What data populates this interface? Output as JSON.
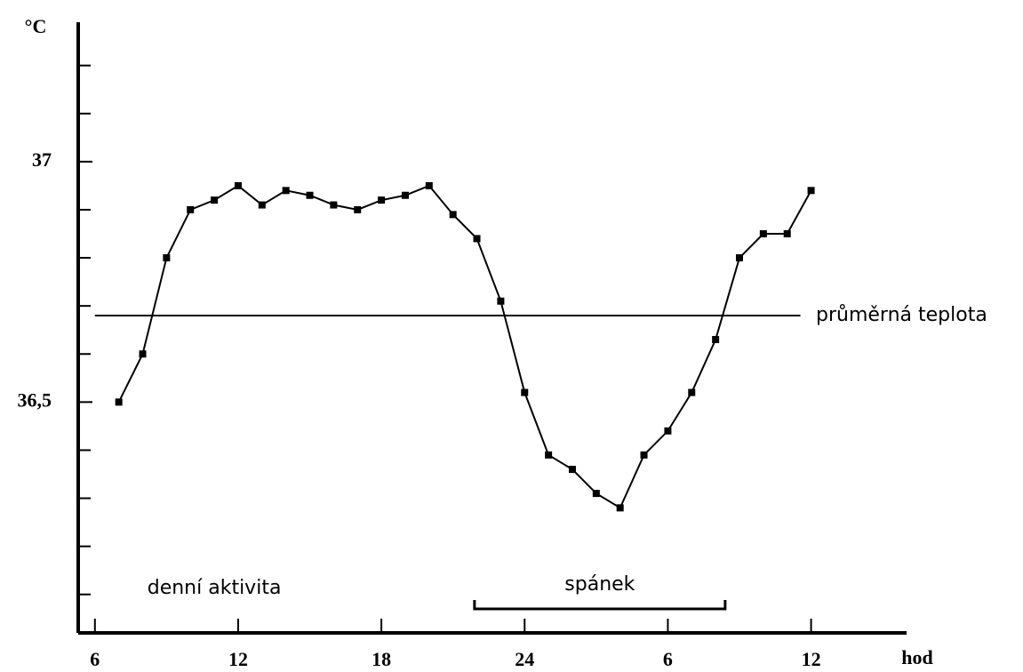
{
  "chart_data": {
    "type": "line",
    "ylabel": "°C",
    "xlabel": "hod",
    "x": [
      7,
      8,
      9,
      10,
      11,
      12,
      13,
      14,
      15,
      16,
      17,
      18,
      19,
      20,
      21,
      22,
      23,
      24,
      25,
      26,
      27,
      28,
      29,
      30,
      31,
      32,
      33,
      34,
      35,
      36
    ],
    "series": [
      {
        "color": "#000000",
        "values": [
          36.5,
          36.6,
          36.8,
          36.9,
          36.92,
          36.95,
          36.91,
          36.94,
          36.93,
          36.91,
          36.9,
          36.92,
          36.93,
          36.95,
          36.89,
          36.84,
          36.71,
          36.52,
          36.39,
          36.36,
          36.31,
          36.28,
          36.39,
          36.44,
          36.52,
          36.63,
          36.8,
          36.85,
          36.85,
          36.94
        ]
      }
    ],
    "xlim": [
      5.3,
      40
    ],
    "ylim": [
      36.02,
      37.29
    ],
    "xticks": [
      6,
      12,
      18,
      24,
      {
        "value": 30,
        "label": "6"
      },
      {
        "value": 36,
        "label": "12"
      }
    ],
    "yticks": [
      {
        "value": 36.5,
        "label": "36,5"
      },
      37
    ],
    "yminor": [
      36.1,
      36.2,
      36.3,
      36.4,
      36.6,
      36.7,
      36.8,
      36.9,
      37.1,
      37.2
    ],
    "reference": {
      "value": 36.68,
      "label": "průměrná teplota",
      "x": [
        6,
        35.55
      ]
    },
    "annotations": [
      {
        "text": "denní aktivita",
        "x": 11
      },
      {
        "text": "spánek",
        "x": [
          21.9,
          32.4
        ]
      }
    ]
  }
}
